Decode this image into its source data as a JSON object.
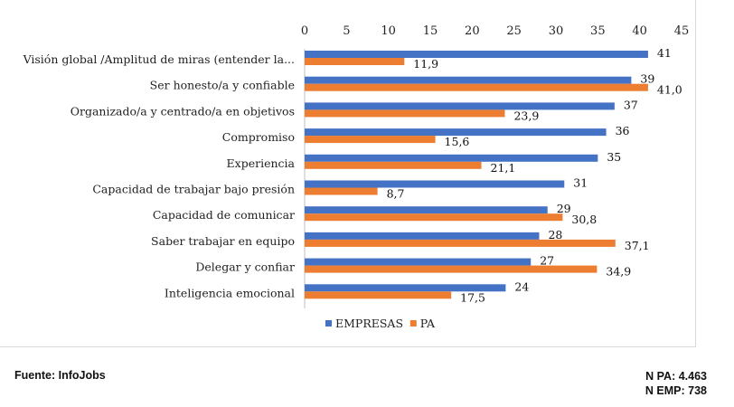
{
  "chart_data": {
    "type": "bar",
    "orientation": "horizontal",
    "categories": [
      "Visión global /Amplitud de miras (entender la...",
      "Ser honesto/a y confiable",
      "Organizado/a y centrado/a en objetivos",
      "Compromiso",
      "Experiencia",
      "Capacidad de trabajar bajo presión",
      "Capacidad de comunicar",
      "Saber trabajar en equipo",
      "Delegar y confiar",
      "Inteligencia emocional"
    ],
    "series": [
      {
        "name": "EMPRESAS",
        "color": "#4472c4",
        "values": [
          41,
          39,
          37,
          36,
          35,
          31,
          29,
          28,
          27,
          24
        ],
        "labels": [
          "41",
          "39",
          "37",
          "36",
          "35",
          "31",
          "29",
          "28",
          "27",
          "24"
        ]
      },
      {
        "name": "PA",
        "color": "#ed7d31",
        "values": [
          11.9,
          41.0,
          23.9,
          15.6,
          21.1,
          8.7,
          30.8,
          37.1,
          34.9,
          17.5
        ],
        "labels": [
          "11,9",
          "41,0",
          "23,9",
          "15,6",
          "21,1",
          "8,7",
          "30,8",
          "37,1",
          "34,9",
          "17,5"
        ]
      }
    ],
    "xlim": [
      0,
      45
    ],
    "xticks": [
      0,
      5,
      10,
      15,
      20,
      25,
      30,
      35,
      40,
      45
    ],
    "x_axis_position": "top",
    "grid": false,
    "legend_position": "bottom-center",
    "title": "",
    "xlabel": "",
    "ylabel": ""
  },
  "footer": {
    "source": "Fuente: InfoJobs",
    "n_pa": "N PA: 4.463",
    "n_emp": "N EMP: 738"
  }
}
